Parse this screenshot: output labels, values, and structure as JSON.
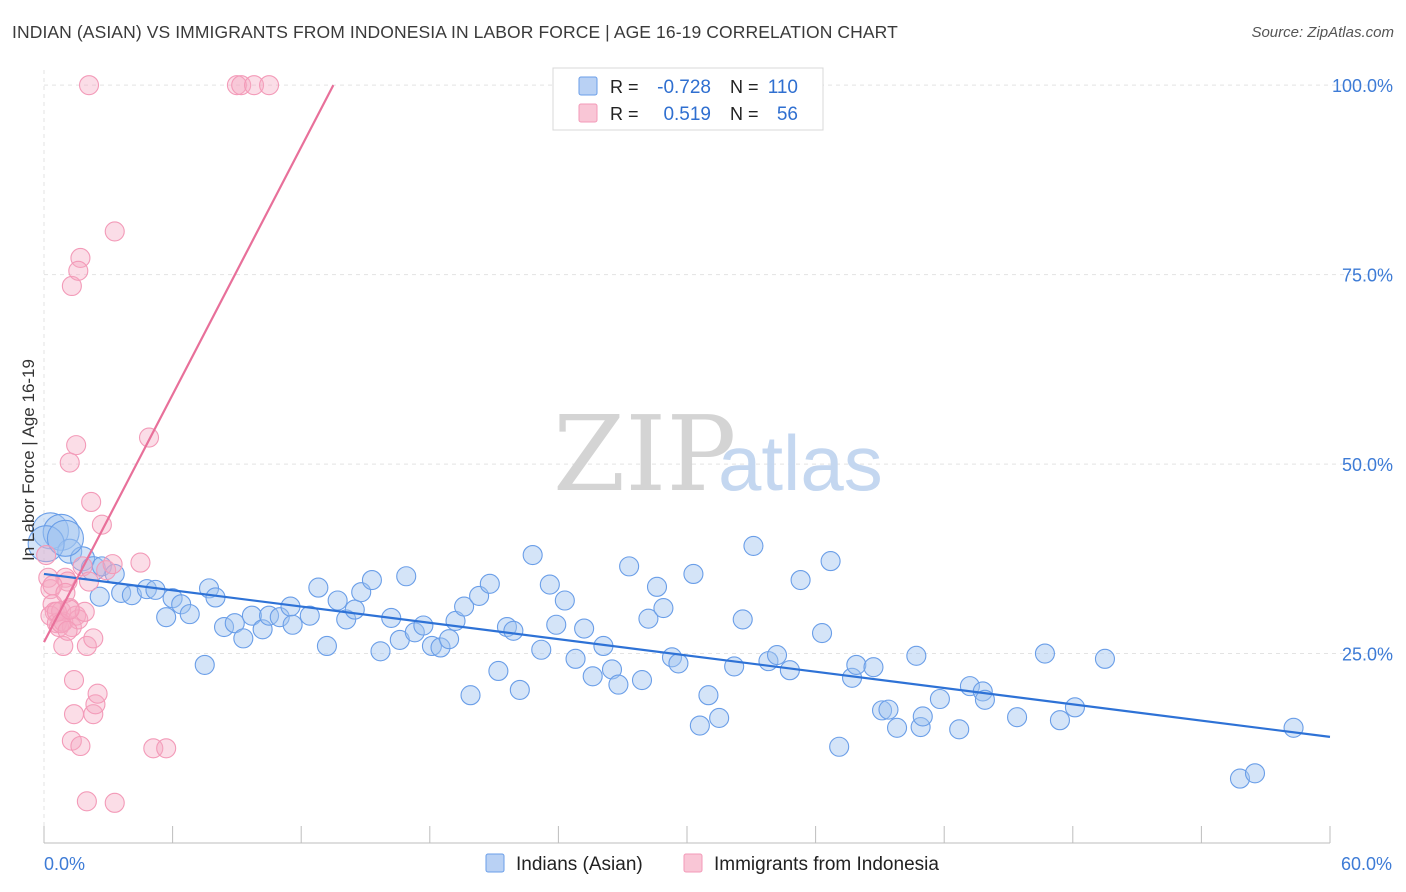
{
  "title": "INDIAN (ASIAN) VS IMMIGRANTS FROM INDONESIA IN LABOR FORCE | AGE 16-19 CORRELATION CHART",
  "source": "Source: ZipAtlas.com",
  "watermark": {
    "zip": "ZIP",
    "atlas": "atlas"
  },
  "chart_data": {
    "type": "scatter",
    "title": "INDIAN (ASIAN) VS IMMIGRANTS FROM INDONESIA IN LABOR FORCE | AGE 16-19 CORRELATION CHART",
    "xlabel": "",
    "ylabel": "In Labor Force | Age 16-19",
    "xlim": [
      0,
      60
    ],
    "ylim": [
      0,
      102
    ],
    "x_tick_labels": [
      "0.0%",
      "60.0%"
    ],
    "y_ticks": [
      25,
      50,
      75,
      100
    ],
    "y_tick_labels": [
      "25.0%",
      "50.0%",
      "75.0%",
      "100.0%"
    ],
    "grid": true,
    "legend_placement": "top-center",
    "series": [
      {
        "name": "Indians (Asian)",
        "color": "#6a9ee8",
        "stat_r_label": "R =",
        "stat_r": "-0.728",
        "stat_n_label": "N =",
        "stat_n": "110",
        "trend": {
          "x": [
            0,
            60
          ],
          "y": [
            35.5,
            14.0
          ]
        },
        "points": [
          [
            0.3,
            41.2
          ],
          [
            0.8,
            41.0
          ],
          [
            1.2,
            38.5
          ],
          [
            1.8,
            37.5
          ],
          [
            2.3,
            36.2
          ],
          [
            2.7,
            36.5
          ],
          [
            3.3,
            35.5
          ],
          [
            3.6,
            33.0
          ],
          [
            2.6,
            32.5
          ],
          [
            4.1,
            32.7
          ],
          [
            4.8,
            33.5
          ],
          [
            5.2,
            33.4
          ],
          [
            6.0,
            32.3
          ],
          [
            6.4,
            31.5
          ],
          [
            5.7,
            29.8
          ],
          [
            6.8,
            30.2
          ],
          [
            7.5,
            23.5
          ],
          [
            7.7,
            33.6
          ],
          [
            8.0,
            32.4
          ],
          [
            8.4,
            28.5
          ],
          [
            8.9,
            29.0
          ],
          [
            9.3,
            27.0
          ],
          [
            9.7,
            30.0
          ],
          [
            10.2,
            28.2
          ],
          [
            10.5,
            30.0
          ],
          [
            11.0,
            29.8
          ],
          [
            11.5,
            31.2
          ],
          [
            11.6,
            28.8
          ],
          [
            12.4,
            30.0
          ],
          [
            12.8,
            33.7
          ],
          [
            13.2,
            26.0
          ],
          [
            13.7,
            32.0
          ],
          [
            14.1,
            29.5
          ],
          [
            14.5,
            30.8
          ],
          [
            14.8,
            33.1
          ],
          [
            15.3,
            34.7
          ],
          [
            15.7,
            25.3
          ],
          [
            16.2,
            29.7
          ],
          [
            16.6,
            26.8
          ],
          [
            16.9,
            35.2
          ],
          [
            17.3,
            27.8
          ],
          [
            17.7,
            28.7
          ],
          [
            18.1,
            26.0
          ],
          [
            18.5,
            25.8
          ],
          [
            18.9,
            26.9
          ],
          [
            19.2,
            29.3
          ],
          [
            19.6,
            31.2
          ],
          [
            19.9,
            19.5
          ],
          [
            20.3,
            32.6
          ],
          [
            20.8,
            34.2
          ],
          [
            21.2,
            22.7
          ],
          [
            21.6,
            28.5
          ],
          [
            21.9,
            28.0
          ],
          [
            22.2,
            20.2
          ],
          [
            22.8,
            38.0
          ],
          [
            23.2,
            25.5
          ],
          [
            23.6,
            34.1
          ],
          [
            23.9,
            28.8
          ],
          [
            24.3,
            32.0
          ],
          [
            24.8,
            24.3
          ],
          [
            25.2,
            28.3
          ],
          [
            25.6,
            22.0
          ],
          [
            26.1,
            26.0
          ],
          [
            26.5,
            22.9
          ],
          [
            26.8,
            20.9
          ],
          [
            27.3,
            36.5
          ],
          [
            27.9,
            21.5
          ],
          [
            28.2,
            29.6
          ],
          [
            28.6,
            33.8
          ],
          [
            28.9,
            31.0
          ],
          [
            29.3,
            24.5
          ],
          [
            29.6,
            23.7
          ],
          [
            30.3,
            35.5
          ],
          [
            31.0,
            19.5
          ],
          [
            31.5,
            16.5
          ],
          [
            30.6,
            15.5
          ],
          [
            32.2,
            23.3
          ],
          [
            32.6,
            29.5
          ],
          [
            33.1,
            39.2
          ],
          [
            33.8,
            24.0
          ],
          [
            34.2,
            24.8
          ],
          [
            34.8,
            22.8
          ],
          [
            35.3,
            34.7
          ],
          [
            36.3,
            27.7
          ],
          [
            36.7,
            37.2
          ],
          [
            37.1,
            12.7
          ],
          [
            37.7,
            21.8
          ],
          [
            37.9,
            23.5
          ],
          [
            38.7,
            23.2
          ],
          [
            39.1,
            17.5
          ],
          [
            39.4,
            17.6
          ],
          [
            39.8,
            15.2
          ],
          [
            40.7,
            24.7
          ],
          [
            40.9,
            15.3
          ],
          [
            41.0,
            16.7
          ],
          [
            41.8,
            19.0
          ],
          [
            42.7,
            15.0
          ],
          [
            43.2,
            20.7
          ],
          [
            43.8,
            20.0
          ],
          [
            43.9,
            18.9
          ],
          [
            45.4,
            16.6
          ],
          [
            46.7,
            25.0
          ],
          [
            47.4,
            16.2
          ],
          [
            48.1,
            17.9
          ],
          [
            49.5,
            24.3
          ],
          [
            55.8,
            8.5
          ],
          [
            56.5,
            9.2
          ],
          [
            58.3,
            15.2
          ],
          [
            0.1,
            39.5
          ],
          [
            1.0,
            40.2
          ]
        ]
      },
      {
        "name": "Immigrants from Indonesia",
        "color": "#f39ab8",
        "stat_r_label": "R =",
        "stat_r": "0.519",
        "stat_n_label": "N =",
        "stat_n": "56",
        "trend": {
          "x": [
            0,
            13.5
          ],
          "y": [
            26.5,
            100
          ]
        },
        "points": [
          [
            0.1,
            38.0
          ],
          [
            0.2,
            35.0
          ],
          [
            0.3,
            33.5
          ],
          [
            0.4,
            31.5
          ],
          [
            0.5,
            30.5
          ],
          [
            0.3,
            30.0
          ],
          [
            0.6,
            29.0
          ],
          [
            0.7,
            28.5
          ],
          [
            0.8,
            30.6
          ],
          [
            0.9,
            26.0
          ],
          [
            1.0,
            35.0
          ],
          [
            1.1,
            34.5
          ],
          [
            1.2,
            31.0
          ],
          [
            1.3,
            28.5
          ],
          [
            0.9,
            29.2
          ],
          [
            1.4,
            21.5
          ],
          [
            1.5,
            30.0
          ],
          [
            1.6,
            29.5
          ],
          [
            1.7,
            77.2
          ],
          [
            1.8,
            36.5
          ],
          [
            1.9,
            30.5
          ],
          [
            2.0,
            26.0
          ],
          [
            2.1,
            34.5
          ],
          [
            2.2,
            45.0
          ],
          [
            2.3,
            17.0
          ],
          [
            2.4,
            18.3
          ],
          [
            2.5,
            19.7
          ],
          [
            2.7,
            42.0
          ],
          [
            2.9,
            36.0
          ],
          [
            3.2,
            36.8
          ],
          [
            3.3,
            80.7
          ],
          [
            1.3,
            73.5
          ],
          [
            1.6,
            75.5
          ],
          [
            1.5,
            52.5
          ],
          [
            1.2,
            50.2
          ],
          [
            1.3,
            13.5
          ],
          [
            1.7,
            12.8
          ],
          [
            2.0,
            5.5
          ],
          [
            3.3,
            5.3
          ],
          [
            4.5,
            37.0
          ],
          [
            4.9,
            53.5
          ],
          [
            5.1,
            12.5
          ],
          [
            5.7,
            12.5
          ],
          [
            2.1,
            100.0
          ],
          [
            9.0,
            100.0
          ],
          [
            9.2,
            100.0
          ],
          [
            9.8,
            100.0
          ],
          [
            10.5,
            100.0
          ],
          [
            0.4,
            34.0
          ],
          [
            0.6,
            30.5
          ],
          [
            0.8,
            29.0
          ],
          [
            1.1,
            28.0
          ],
          [
            1.2,
            30.8
          ],
          [
            1.4,
            17.0
          ],
          [
            2.3,
            27.0
          ],
          [
            1.0,
            33.0
          ]
        ]
      }
    ]
  },
  "bottom_legend": [
    "Indians (Asian)",
    "Immigrants from Indonesia"
  ]
}
